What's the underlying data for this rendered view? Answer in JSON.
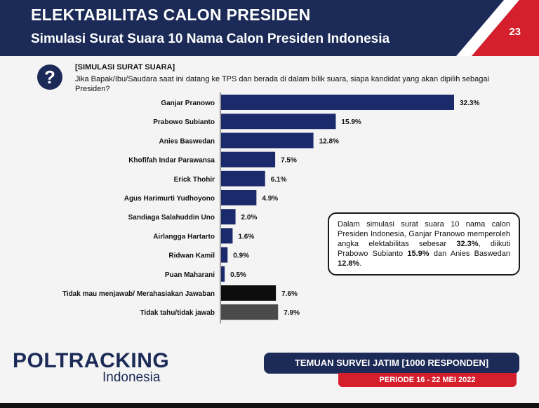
{
  "header": {
    "title": "ELEKTABILITAS CALON PRESIDEN",
    "subtitle": "Simulasi Surat Suara 10 Nama Calon Presiden Indonesia",
    "page_number": "23"
  },
  "question": {
    "icon": "question-mark-icon",
    "heading": "[SIMULASI SURAT SUARA]",
    "text": "Jika Bapak/Ibu/Saudara saat ini datang ke TPS dan berada di dalam bilik suara, siapa kandidat yang akan dipilih sebagai Presiden?"
  },
  "chart_data": {
    "type": "bar",
    "orientation": "horizontal",
    "categories": [
      "Ganjar Pranowo",
      "Prabowo Subianto",
      "Anies Baswedan",
      "Khofifah Indar Parawansa",
      "Erick Thohir",
      "Agus Harimurti Yudhoyono",
      "Sandiaga Salahuddin Uno",
      "Airlangga Hartarto",
      "Ridwan Kamil",
      "Puan Maharani",
      "Tidak mau menjawab/ Merahasiakan Jawaban",
      "Tidak tahu/tidak jawab"
    ],
    "values": [
      32.3,
      15.9,
      12.8,
      7.5,
      6.1,
      4.9,
      2.0,
      1.6,
      0.9,
      0.5,
      7.6,
      7.9
    ],
    "value_labels": [
      "32.3%",
      "15.9%",
      "12.8%",
      "7.5%",
      "6.1%",
      "4.9%",
      "2.0%",
      "1.6%",
      "0.9%",
      "0.5%",
      "7.6%",
      "7.9%"
    ],
    "colors": [
      "#1b2a6b",
      "#1b2a6b",
      "#1b2a6b",
      "#1b2a6b",
      "#1b2a6b",
      "#1b2a6b",
      "#1b2a6b",
      "#1b2a6b",
      "#1b2a6b",
      "#1b2a6b",
      "#0d0d0d",
      "#4a4a4a"
    ]
  },
  "callout": {
    "part1": "Dalam simulasi surat suara 10 nama calon Presiden Indonesia, Ganjar Pranowo memperoleh angka elektabilitas sebesar ",
    "value1": "32.3%",
    "part2": ", diikuti Prabowo Subianto ",
    "value2": "15.9%",
    "part3": " dan Anies Baswedan ",
    "value3": "12.8%",
    "part4": "."
  },
  "footer": {
    "logo_main": "POLTRACKING",
    "logo_sub": "Indonesia",
    "survey_label": "TEMUAN SURVEI JATIM [1000 RESPONDEN]",
    "period_label": "PERIODE 16 - 22 MEI 2022"
  },
  "colors": {
    "navy": "#1b2a56",
    "red": "#d61f2c"
  }
}
